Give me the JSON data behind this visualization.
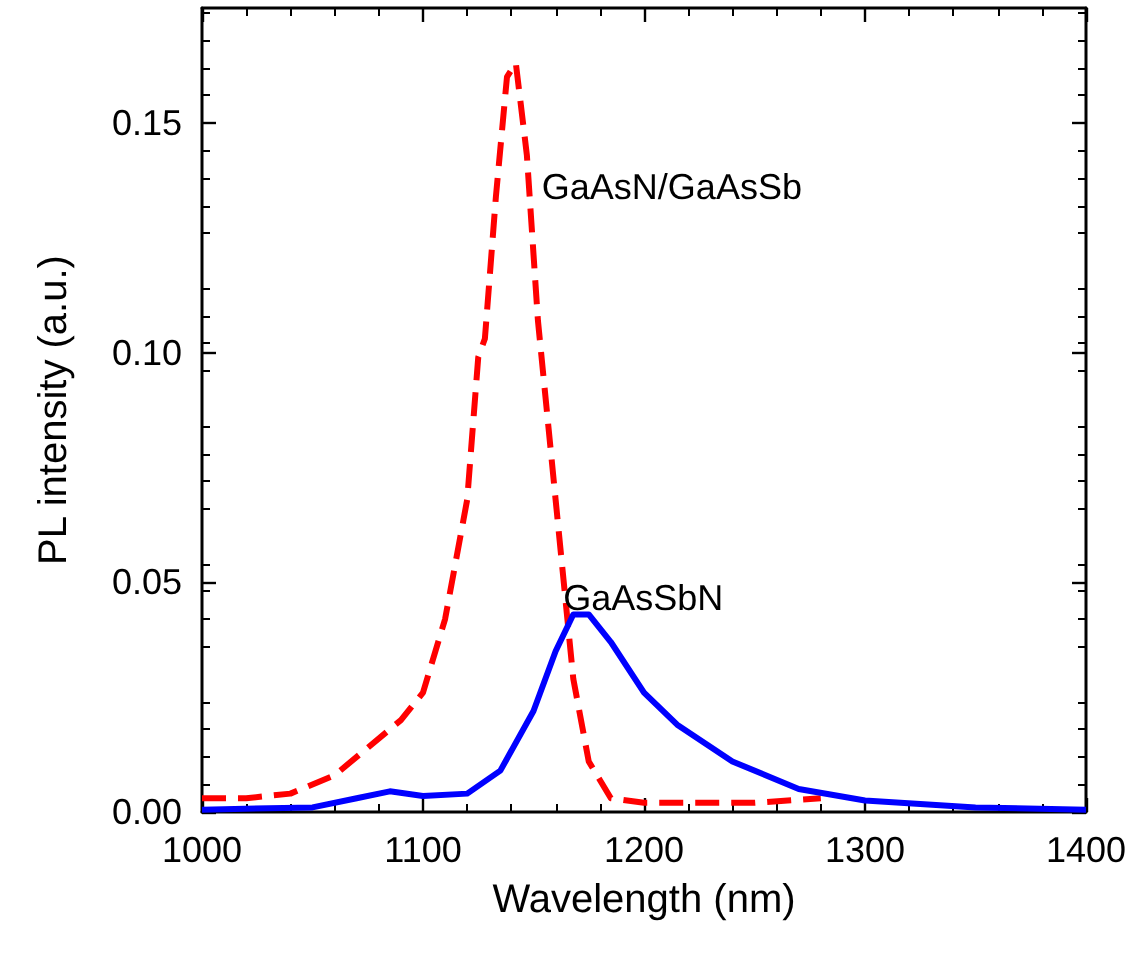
{
  "chart_data": {
    "type": "line",
    "xlabel": "Wavelength (nm)",
    "ylabel": "PL intensity (a.u.)",
    "xlim": [
      1000,
      1400
    ],
    "ylim": [
      0,
      0.175
    ],
    "xticks": [
      1000,
      1100,
      1200,
      1300,
      1400
    ],
    "yticks": [
      {
        "value": 0,
        "label": "0.00"
      },
      {
        "value": 0.05,
        "label": "0.05"
      },
      {
        "value": 0.1,
        "label": "0.10"
      },
      {
        "value": 0.15,
        "label": "0.15"
      }
    ],
    "grid": false,
    "legend": false,
    "marker": "none",
    "series": [
      {
        "name": "GaAsN/GaAsSb",
        "color": "#ff0000",
        "line_style": "dashed",
        "x": [
          1000,
          1020,
          1040,
          1060,
          1075,
          1090,
          1100,
          1110,
          1120,
          1125,
          1128,
          1133,
          1138,
          1142,
          1147,
          1152,
          1160,
          1168,
          1175,
          1185,
          1200,
          1250,
          1280
        ],
        "values": [
          0.003,
          0.003,
          0.004,
          0.008,
          0.014,
          0.02,
          0.026,
          0.042,
          0.068,
          0.099,
          0.103,
          0.134,
          0.16,
          0.163,
          0.143,
          0.107,
          0.068,
          0.029,
          0.011,
          0.003,
          0.002,
          0.002,
          0.003
        ]
      },
      {
        "name": "GaAsSbN",
        "color": "#0000ff",
        "line_style": "solid",
        "x": [
          1000,
          1050,
          1070,
          1085,
          1100,
          1120,
          1135,
          1150,
          1160,
          1168,
          1175,
          1185,
          1200,
          1215,
          1240,
          1270,
          1300,
          1350,
          1400
        ],
        "values": [
          0.0005,
          0.001,
          0.003,
          0.0045,
          0.0035,
          0.004,
          0.009,
          0.022,
          0.035,
          0.043,
          0.043,
          0.037,
          0.026,
          0.019,
          0.011,
          0.005,
          0.0025,
          0.001,
          0.0005
        ]
      }
    ]
  }
}
